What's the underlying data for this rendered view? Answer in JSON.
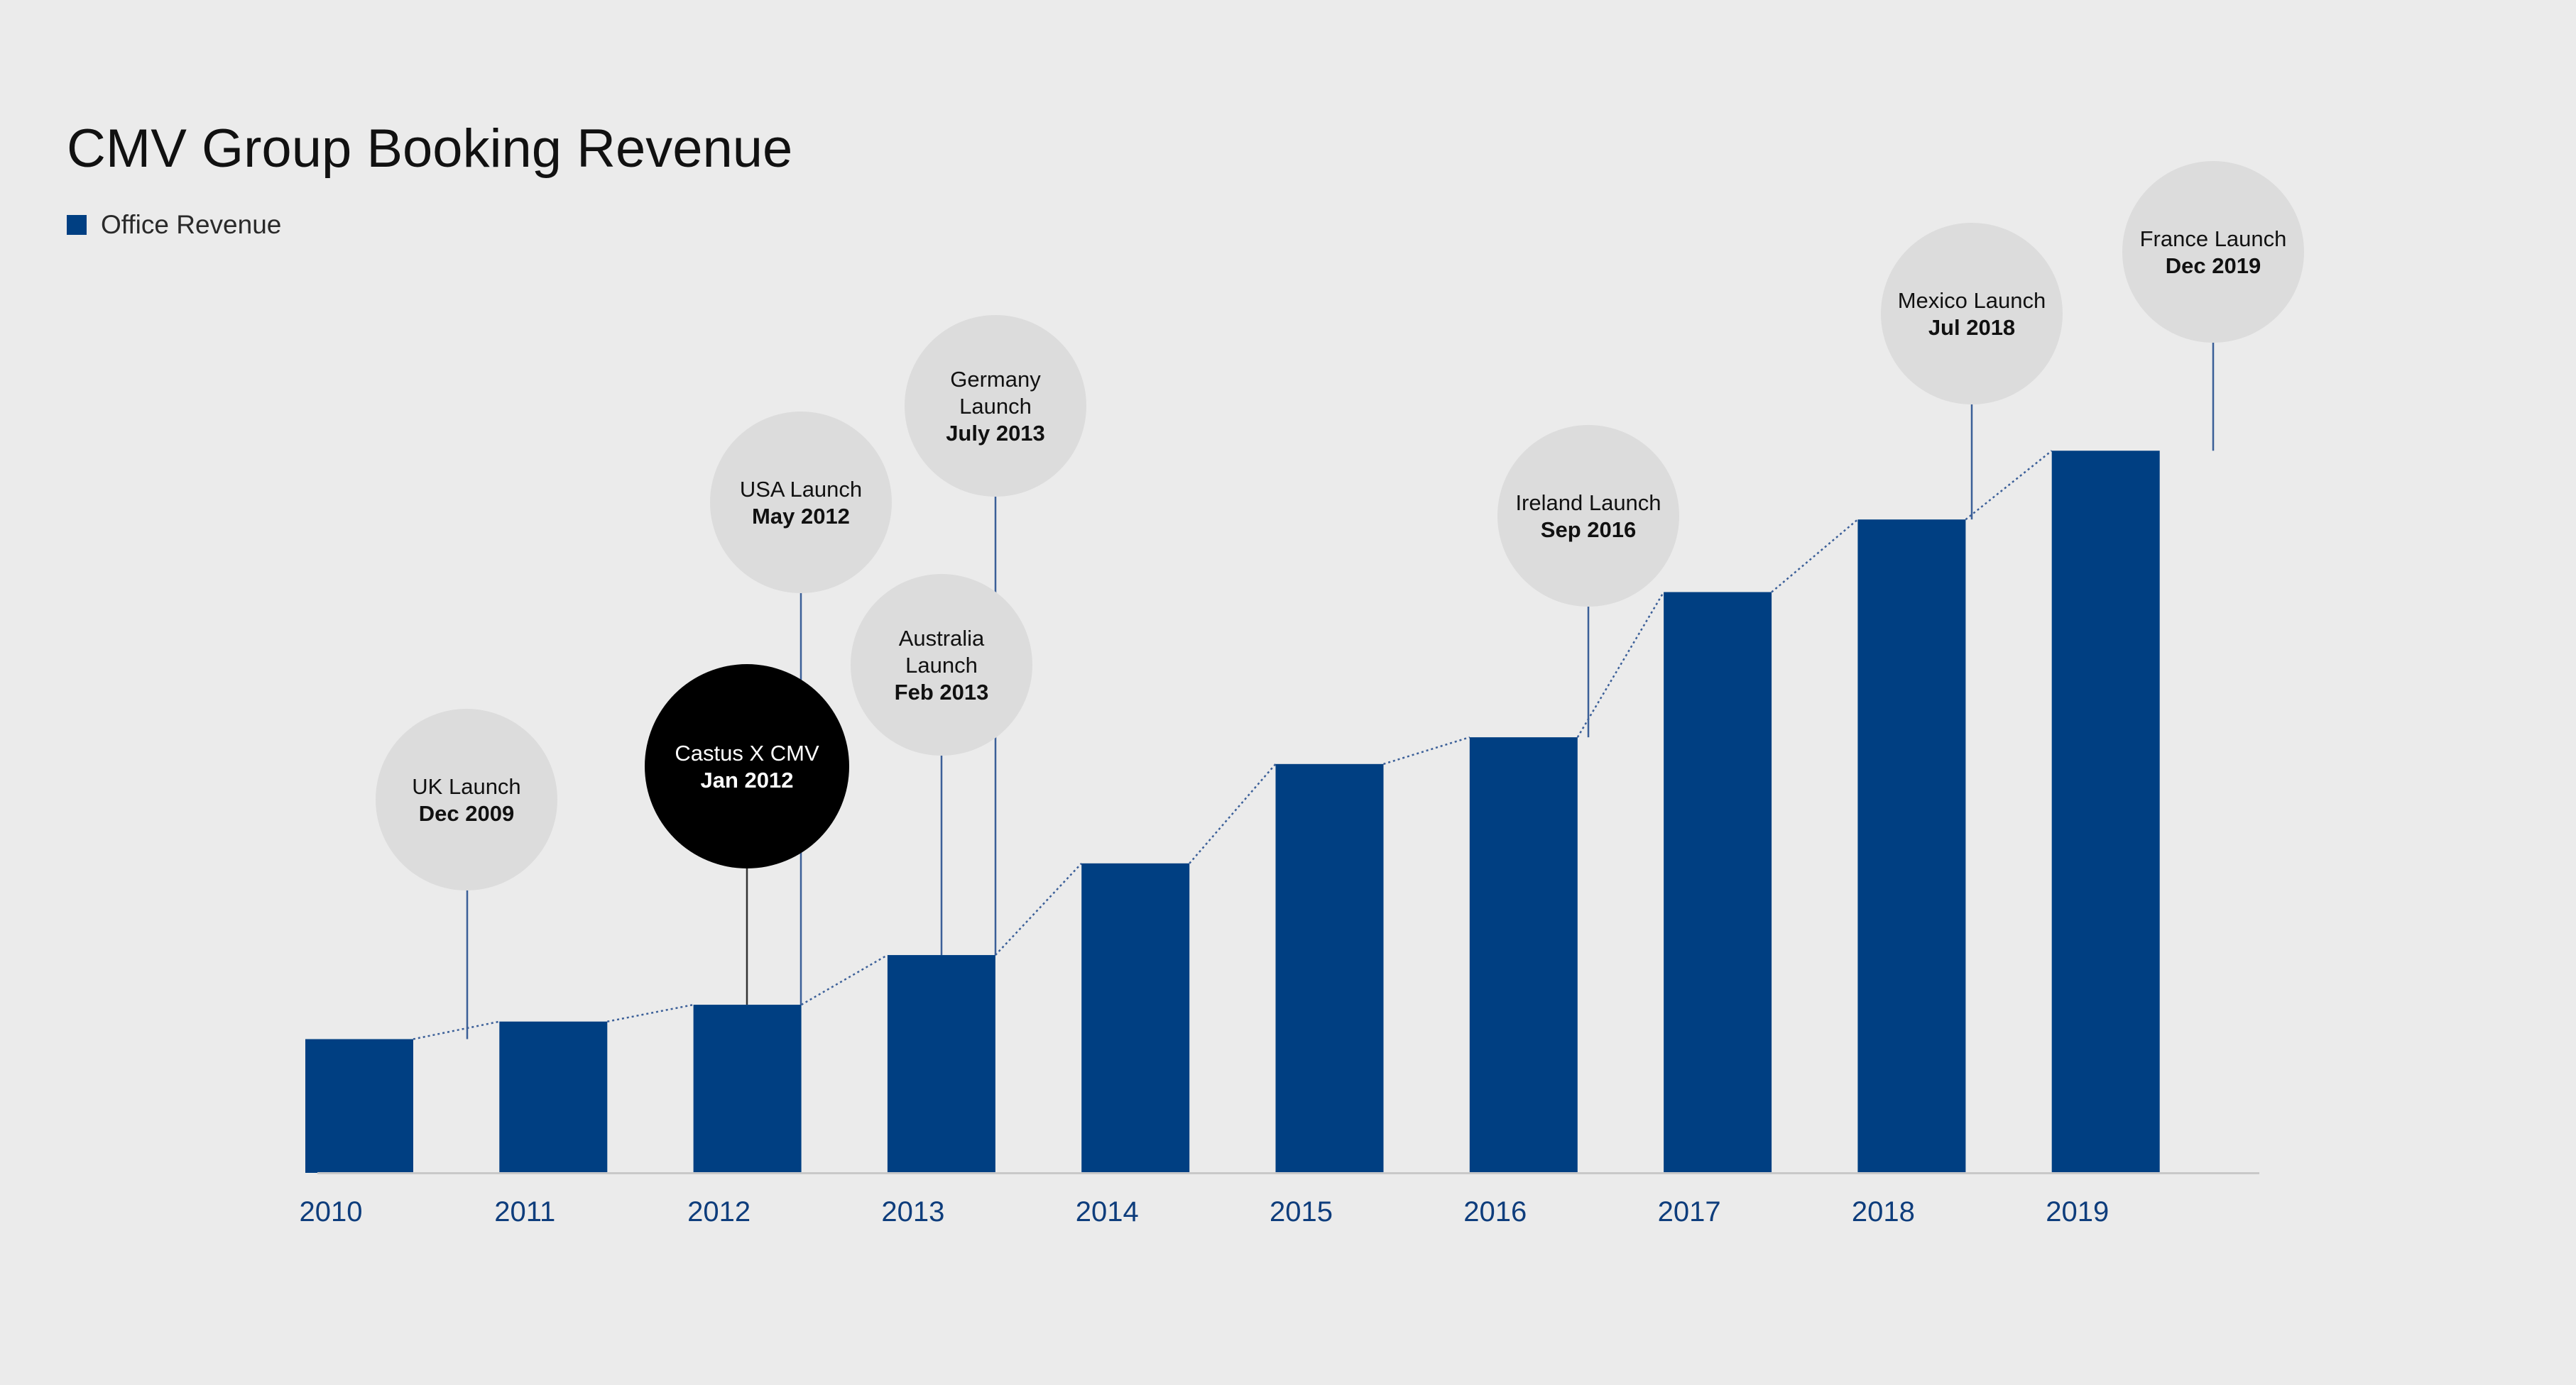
{
  "chart_data": {
    "type": "bar",
    "title": "CMV Group Booking Revenue",
    "legend": "Office Revenue",
    "legend_placement": "top-left",
    "xlabel": "",
    "ylabel": "",
    "y_axis_visible": false,
    "grid": false,
    "categories": [
      "2010",
      "2011",
      "2012",
      "2013",
      "2014",
      "2015",
      "2016",
      "2017",
      "2018",
      "2019"
    ],
    "series": [
      {
        "name": "Office Revenue",
        "values": [
          1.75,
          1.98,
          2.2,
          2.85,
          4.05,
          5.35,
          5.7,
          7.6,
          8.55,
          9.45
        ]
      }
    ],
    "ylim": [
      0,
      10
    ],
    "trend_line": "dotted connector between bar tops",
    "colors": {
      "bar": "#003f82",
      "axis_label": "#0e3d7c",
      "bubble": "#dcdcdc",
      "bubble_highlight": "#000000",
      "connector": "#3b5f98",
      "baseline": "#c8c8c8",
      "background": "#ebebeb"
    },
    "annotations": [
      {
        "lines": [
          "UK Launch"
        ],
        "date": "Dec 2009",
        "category": "2010",
        "highlight": false
      },
      {
        "lines": [
          "Castus X CMV"
        ],
        "date": "Jan 2012",
        "category": "2012",
        "highlight": true
      },
      {
        "lines": [
          "USA Launch"
        ],
        "date": "May 2012",
        "category": "2012",
        "highlight": false
      },
      {
        "lines": [
          "Australia",
          "Launch"
        ],
        "date": "Feb 2013",
        "category": "2013",
        "highlight": false
      },
      {
        "lines": [
          "Germany",
          "Launch"
        ],
        "date": "July 2013",
        "category": "2013",
        "highlight": false
      },
      {
        "lines": [
          "Ireland Launch"
        ],
        "date": "Sep 2016",
        "category": "2016",
        "highlight": false
      },
      {
        "lines": [
          "Mexico Launch"
        ],
        "date": "Jul 2018",
        "category": "2018",
        "highlight": false
      },
      {
        "lines": [
          "France Launch"
        ],
        "date": "Dec 2019",
        "category": "2019",
        "highlight": false
      }
    ]
  }
}
